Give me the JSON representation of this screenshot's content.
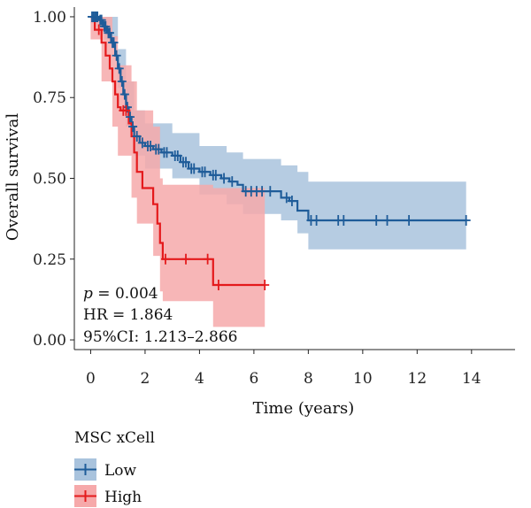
{
  "chart_data": {
    "type": "line",
    "xlabel": "Time (years)",
    "ylabel": "Overall survival",
    "xlim": [
      -0.6,
      15.6
    ],
    "ylim": [
      -0.03,
      1.03
    ],
    "x_ticks": [
      0,
      2,
      4,
      6,
      8,
      10,
      12,
      14
    ],
    "y_ticks": [
      0.0,
      0.25,
      0.5,
      0.75,
      1.0
    ],
    "y_tick_labels": [
      "0.00",
      "0.25",
      "0.50",
      "0.75",
      "1.00"
    ],
    "annotations": {
      "p_symbol": "p",
      "p_value": " = 0.004",
      "hr": "HR = 1.864",
      "ci": "95%CI: 1.213–2.866"
    },
    "legend": {
      "title": "MSC xCell",
      "placement": "bottom-left",
      "entries": [
        "Low",
        "High"
      ]
    },
    "series": [
      {
        "name": "Low",
        "color": "#1f5c99",
        "band_color": "#a9c3dd",
        "steps": [
          [
            0,
            1.0
          ],
          [
            0.3,
            0.99
          ],
          [
            0.45,
            0.97
          ],
          [
            0.6,
            0.95
          ],
          [
            0.75,
            0.92
          ],
          [
            0.9,
            0.88
          ],
          [
            1.0,
            0.84
          ],
          [
            1.1,
            0.8
          ],
          [
            1.2,
            0.76
          ],
          [
            1.3,
            0.72
          ],
          [
            1.4,
            0.69
          ],
          [
            1.5,
            0.66
          ],
          [
            1.6,
            0.63
          ],
          [
            1.8,
            0.61
          ],
          [
            2.0,
            0.6
          ],
          [
            2.3,
            0.59
          ],
          [
            2.6,
            0.58
          ],
          [
            3.0,
            0.57
          ],
          [
            3.3,
            0.55
          ],
          [
            3.6,
            0.53
          ],
          [
            4.0,
            0.52
          ],
          [
            4.4,
            0.51
          ],
          [
            4.8,
            0.5
          ],
          [
            5.1,
            0.49
          ],
          [
            5.4,
            0.48
          ],
          [
            5.6,
            0.46
          ],
          [
            7.0,
            0.44
          ],
          [
            7.3,
            0.43
          ],
          [
            7.6,
            0.4
          ],
          [
            8.0,
            0.37
          ],
          [
            13.8,
            0.37
          ]
        ],
        "lower": [
          [
            0,
            0.98
          ],
          [
            0.5,
            0.93
          ],
          [
            1.0,
            0.78
          ],
          [
            1.3,
            0.66
          ],
          [
            1.6,
            0.57
          ],
          [
            2.0,
            0.53
          ],
          [
            3.0,
            0.5
          ],
          [
            4.0,
            0.45
          ],
          [
            5.0,
            0.42
          ],
          [
            5.6,
            0.39
          ],
          [
            7.0,
            0.37
          ],
          [
            7.6,
            0.33
          ],
          [
            8.0,
            0.28
          ],
          [
            13.8,
            0.28
          ]
        ],
        "upper": [
          [
            0,
            1.0
          ],
          [
            0.5,
            1.0
          ],
          [
            1.0,
            0.9
          ],
          [
            1.3,
            0.8
          ],
          [
            1.6,
            0.71
          ],
          [
            2.0,
            0.67
          ],
          [
            3.0,
            0.64
          ],
          [
            4.0,
            0.6
          ],
          [
            5.0,
            0.58
          ],
          [
            5.6,
            0.56
          ],
          [
            7.0,
            0.54
          ],
          [
            7.6,
            0.52
          ],
          [
            8.0,
            0.49
          ],
          [
            13.8,
            0.49
          ]
        ],
        "censor_x": [
          0.05,
          0.1,
          0.15,
          0.2,
          0.25,
          0.35,
          0.4,
          0.5,
          0.55,
          0.65,
          0.7,
          0.8,
          0.85,
          0.95,
          1.05,
          1.15,
          1.25,
          1.35,
          1.45,
          1.55,
          1.7,
          1.9,
          2.1,
          2.2,
          2.4,
          2.5,
          2.7,
          2.8,
          3.1,
          3.2,
          3.4,
          3.5,
          3.7,
          3.8,
          4.1,
          4.2,
          4.5,
          4.6,
          4.9,
          5.2,
          5.7,
          5.9,
          6.1,
          6.3,
          6.6,
          7.2,
          7.4,
          8.1,
          8.3,
          9.1,
          9.3,
          10.5,
          10.9,
          11.7,
          13.8
        ]
      },
      {
        "name": "High",
        "color": "#e41a1c",
        "band_color": "#f6a9aa",
        "steps": [
          [
            0,
            1.0
          ],
          [
            0.15,
            0.96
          ],
          [
            0.4,
            0.92
          ],
          [
            0.55,
            0.88
          ],
          [
            0.7,
            0.84
          ],
          [
            0.8,
            0.8
          ],
          [
            0.9,
            0.76
          ],
          [
            1.0,
            0.72
          ],
          [
            1.1,
            0.71
          ],
          [
            1.4,
            0.67
          ],
          [
            1.5,
            0.63
          ],
          [
            1.6,
            0.58
          ],
          [
            1.7,
            0.52
          ],
          [
            1.9,
            0.47
          ],
          [
            2.3,
            0.42
          ],
          [
            2.45,
            0.36
          ],
          [
            2.55,
            0.3
          ],
          [
            2.65,
            0.25
          ],
          [
            4.5,
            0.17
          ],
          [
            6.4,
            0.17
          ]
        ],
        "lower": [
          [
            0,
            0.93
          ],
          [
            0.4,
            0.8
          ],
          [
            0.8,
            0.66
          ],
          [
            1.0,
            0.57
          ],
          [
            1.5,
            0.44
          ],
          [
            1.7,
            0.36
          ],
          [
            2.3,
            0.26
          ],
          [
            2.55,
            0.15
          ],
          [
            2.65,
            0.12
          ],
          [
            4.5,
            0.04
          ],
          [
            6.4,
            0.04
          ]
        ],
        "upper": [
          [
            0,
            1.0
          ],
          [
            0.4,
            1.0
          ],
          [
            0.8,
            0.94
          ],
          [
            1.0,
            0.85
          ],
          [
            1.5,
            0.8
          ],
          [
            1.7,
            0.71
          ],
          [
            2.3,
            0.66
          ],
          [
            2.55,
            0.5
          ],
          [
            2.65,
            0.48
          ],
          [
            4.5,
            0.47
          ],
          [
            6.4,
            0.47
          ]
        ],
        "censor_x": [
          0.3,
          1.2,
          1.3,
          2.75,
          3.5,
          4.3,
          4.7,
          6.4
        ]
      }
    ]
  }
}
